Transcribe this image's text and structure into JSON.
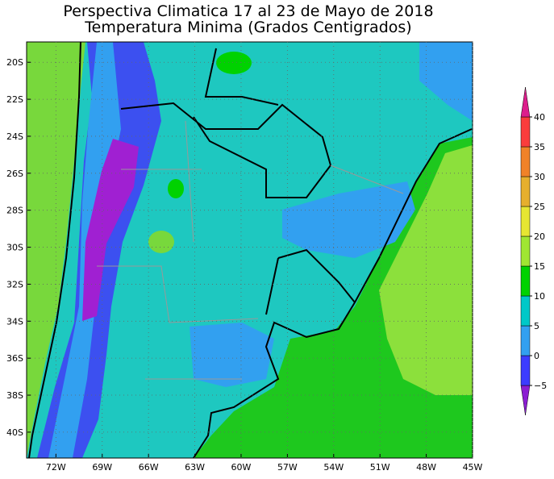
{
  "title": "Perspectiva Climatica 17 al 23 de  Mayo de 2018",
  "subtitle": "Temperatura Minima (Grados Centigrados)",
  "map": {
    "lat_ticks": [
      {
        "value": -20,
        "label": "20S"
      },
      {
        "value": -22,
        "label": "22S"
      },
      {
        "value": -24,
        "label": "24S"
      },
      {
        "value": -26,
        "label": "26S"
      },
      {
        "value": -28,
        "label": "28S"
      },
      {
        "value": -30,
        "label": "30S"
      },
      {
        "value": -32,
        "label": "32S"
      },
      {
        "value": -34,
        "label": "34S"
      },
      {
        "value": -36,
        "label": "36S"
      },
      {
        "value": -38,
        "label": "38S"
      },
      {
        "value": -40,
        "label": "40S"
      }
    ],
    "lon_ticks": [
      {
        "value": -72,
        "label": "72W"
      },
      {
        "value": -69,
        "label": "69W"
      },
      {
        "value": -66,
        "label": "66W"
      },
      {
        "value": -63,
        "label": "63W"
      },
      {
        "value": -60,
        "label": "60W"
      },
      {
        "value": -57,
        "label": "57W"
      },
      {
        "value": -54,
        "label": "54W"
      },
      {
        "value": -51,
        "label": "51W"
      },
      {
        "value": -48,
        "label": "48W"
      },
      {
        "value": -45,
        "label": "45W"
      }
    ],
    "grid": true
  },
  "colorbar": {
    "levels": [
      {
        "value": -5,
        "label": "−5"
      },
      0,
      5,
      10,
      15,
      20,
      25,
      30,
      35,
      40
    ],
    "colors": [
      "#8c1ed2",
      "#3c3cff",
      "#32a0f0",
      "#00c8c8",
      "#00d200",
      "#a0e632",
      "#e6e632",
      "#e6af2d",
      "#f08228",
      "#fa3c3c",
      "#dc1e8c"
    ]
  }
}
